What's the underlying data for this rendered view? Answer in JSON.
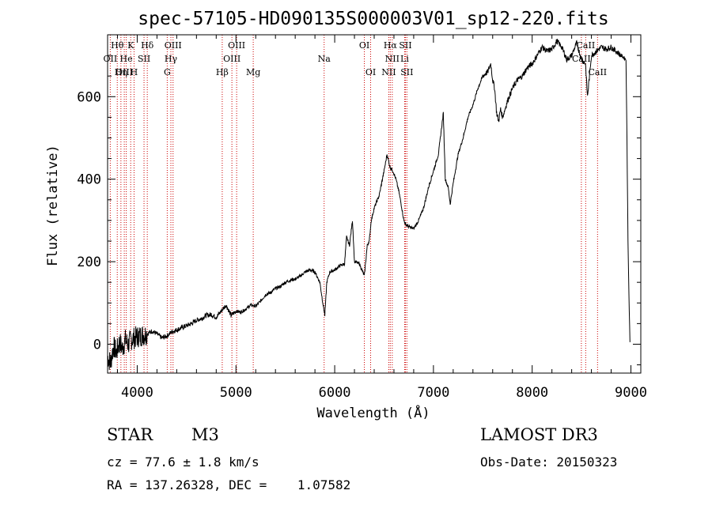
{
  "chart_data": {
    "type": "line",
    "title": "spec-57105-HD090135S000003V01_sp12-220.fits",
    "xlabel": "Wavelength (Å)",
    "ylabel": "Flux (relative)",
    "xlim": [
      3700,
      9100
    ],
    "ylim": [
      -70,
      750
    ],
    "xticks": [
      4000,
      5000,
      6000,
      7000,
      8000,
      9000
    ],
    "yticks": [
      0,
      200,
      400,
      600
    ],
    "series": [
      {
        "name": "flux",
        "x": [
          3700,
          3730,
          3760,
          3790,
          3820,
          3850,
          3880,
          3910,
          3940,
          3970,
          4000,
          4050,
          4100,
          4150,
          4200,
          4250,
          4300,
          4350,
          4400,
          4450,
          4500,
          4550,
          4600,
          4650,
          4700,
          4750,
          4800,
          4850,
          4900,
          4950,
          5000,
          5050,
          5100,
          5150,
          5200,
          5250,
          5300,
          5350,
          5400,
          5450,
          5500,
          5550,
          5600,
          5650,
          5700,
          5750,
          5800,
          5850,
          5880,
          5900,
          5920,
          5950,
          6000,
          6050,
          6100,
          6120,
          6150,
          6180,
          6200,
          6250,
          6300,
          6330,
          6350,
          6370,
          6400,
          6450,
          6500,
          6530,
          6560,
          6590,
          6620,
          6650,
          6680,
          6700,
          6720,
          6750,
          6800,
          6850,
          6900,
          6950,
          7000,
          7050,
          7080,
          7100,
          7120,
          7150,
          7170,
          7200,
          7250,
          7300,
          7350,
          7400,
          7450,
          7500,
          7550,
          7580,
          7600,
          7620,
          7640,
          7660,
          7680,
          7700,
          7750,
          7800,
          7850,
          7900,
          7950,
          8000,
          8050,
          8100,
          8150,
          8200,
          8250,
          8300,
          8350,
          8400,
          8450,
          8500,
          8540,
          8560,
          8600,
          8650,
          8700,
          8750,
          8800,
          8850,
          8900,
          8950,
          8960,
          8970,
          8980,
          8990
        ],
        "y": [
          -30,
          -45,
          -5,
          -20,
          5,
          -10,
          10,
          0,
          12,
          15,
          18,
          22,
          25,
          32,
          25,
          15,
          20,
          30,
          35,
          40,
          45,
          50,
          58,
          62,
          70,
          72,
          65,
          80,
          95,
          70,
          80,
          78,
          85,
          95,
          92,
          105,
          120,
          125,
          135,
          140,
          150,
          155,
          158,
          165,
          175,
          180,
          175,
          150,
          100,
          70,
          150,
          175,
          180,
          190,
          195,
          260,
          240,
          300,
          200,
          195,
          165,
          240,
          250,
          300,
          330,
          360,
          420,
          460,
          430,
          420,
          400,
          370,
          330,
          300,
          290,
          285,
          280,
          300,
          330,
          380,
          420,
          460,
          520,
          560,
          400,
          380,
          340,
          390,
          460,
          500,
          550,
          580,
          620,
          650,
          660,
          680,
          640,
          620,
          560,
          540,
          570,
          550,
          590,
          620,
          640,
          650,
          670,
          680,
          700,
          720,
          710,
          715,
          735,
          720,
          690,
          700,
          730,
          690,
          680,
          600,
          700,
          710,
          720,
          715,
          720,
          710,
          700,
          690,
          500,
          250,
          120,
          5
        ]
      }
    ],
    "spectral_lines": [
      {
        "name": "Hθ",
        "x": 3798
      },
      {
        "name": "OII",
        "x": 3727
      },
      {
        "name": "OIII",
        "x": 3869
      },
      {
        "name": "K",
        "x": 3934
      },
      {
        "name": "H",
        "x": 3968
      },
      {
        "name": "He",
        "x": 3889
      },
      {
        "name": "Hη",
        "x": 3835
      },
      {
        "name": "Hδ",
        "x": 4102
      },
      {
        "name": "SII",
        "x": 4069
      },
      {
        "name": "OIII",
        "x": 4363
      },
      {
        "name": "Hγ",
        "x": 4341
      },
      {
        "name": "G",
        "x": 4304
      },
      {
        "name": "Hβ",
        "x": 4861
      },
      {
        "name": "OIII",
        "x": 4959
      },
      {
        "name": "OIII",
        "x": 5007
      },
      {
        "name": "Mg",
        "x": 5175
      },
      {
        "name": "Na",
        "x": 5893
      },
      {
        "name": "OI",
        "x": 6300
      },
      {
        "name": "OI",
        "x": 6364
      },
      {
        "name": "Hα",
        "x": 6563
      },
      {
        "name": "NII",
        "x": 6548
      },
      {
        "name": "NII",
        "x": 6583
      },
      {
        "name": "SII",
        "x": 6716
      },
      {
        "name": "SII",
        "x": 6731
      },
      {
        "name": "Li",
        "x": 6708
      },
      {
        "name": "CaII",
        "x": 8498
      },
      {
        "name": "CaII",
        "x": 8542
      },
      {
        "name": "CaII",
        "x": 8662
      }
    ],
    "line_labels": [
      {
        "text": "Hθ",
        "x": 3798,
        "row": 0
      },
      {
        "text": "K",
        "x": 3934,
        "row": 0
      },
      {
        "text": "Hδ",
        "x": 4102,
        "row": 0
      },
      {
        "text": "OIII",
        "x": 4363,
        "row": 0
      },
      {
        "text": "OIII",
        "x": 5007,
        "row": 0
      },
      {
        "text": "OI",
        "x": 6300,
        "row": 0
      },
      {
        "text": "Hα",
        "x": 6563,
        "row": 0
      },
      {
        "text": "SII",
        "x": 6716,
        "row": 0
      },
      {
        "text": "CaII",
        "x": 8542,
        "row": 0
      },
      {
        "text": "OII",
        "x": 3727,
        "row": 1
      },
      {
        "text": "He",
        "x": 3889,
        "row": 1
      },
      {
        "text": "SII",
        "x": 4069,
        "row": 1
      },
      {
        "text": "Hγ",
        "x": 4341,
        "row": 1
      },
      {
        "text": "OIII",
        "x": 4959,
        "row": 1
      },
      {
        "text": "Na",
        "x": 5893,
        "row": 1
      },
      {
        "text": "NII",
        "x": 6583,
        "row": 1
      },
      {
        "text": "Li",
        "x": 6708,
        "row": 1
      },
      {
        "text": "CaII",
        "x": 8498,
        "row": 1
      },
      {
        "text": "OIII",
        "x": 3869,
        "row": 2
      },
      {
        "text": "Hη",
        "x": 3835,
        "row": 2
      },
      {
        "text": "H",
        "x": 3968,
        "row": 2
      },
      {
        "text": "G",
        "x": 4304,
        "row": 2
      },
      {
        "text": "Hβ",
        "x": 4861,
        "row": 2
      },
      {
        "text": "Mg",
        "x": 5175,
        "row": 2
      },
      {
        "text": "OI",
        "x": 6364,
        "row": 2
      },
      {
        "text": "NII",
        "x": 6548,
        "row": 2
      },
      {
        "text": "SII",
        "x": 6731,
        "row": 2
      },
      {
        "text": "CaII",
        "x": 8662,
        "row": 2
      }
    ]
  },
  "info": {
    "object_type": "STAR",
    "subclass": "M3",
    "survey": "LAMOST DR3",
    "cz": "cz = 77.6 ± 1.8 km/s",
    "obs_date": "Obs-Date: 20150323",
    "radec": "RA = 137.26328, DEC =    1.07582"
  },
  "colors": {
    "line": "#000000",
    "marker": "#cc0000",
    "axis": "#000000"
  }
}
